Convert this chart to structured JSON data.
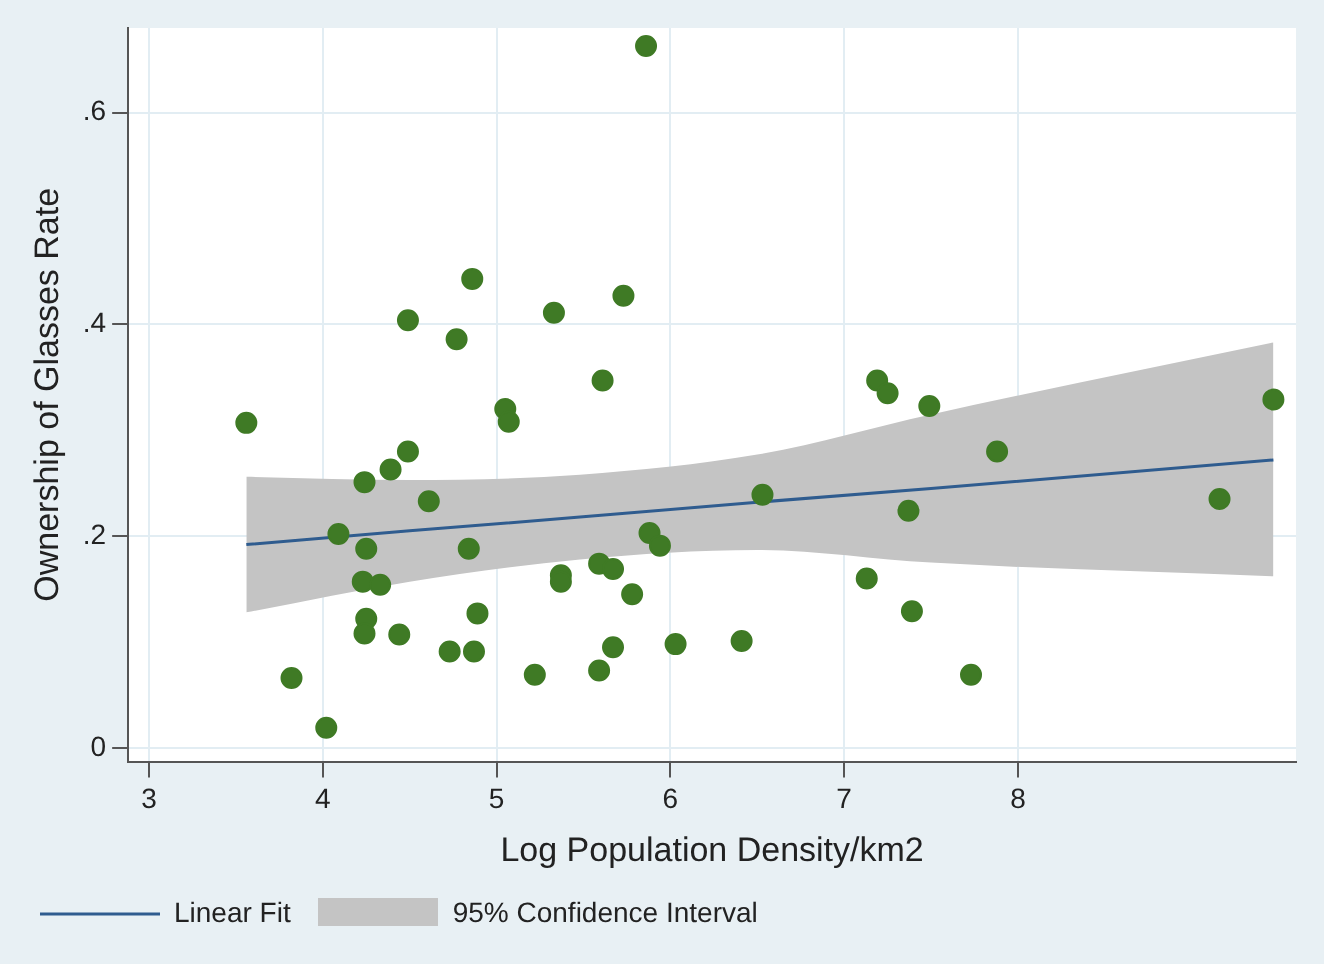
{
  "chart_data": {
    "type": "scatter",
    "xlabel": "Log Population Density/km2",
    "ylabel": "Ownership of Glasses Rate",
    "xlim": [
      2.88,
      9.6
    ],
    "ylim": [
      -0.013,
      0.68
    ],
    "xticks": [
      3,
      4,
      5,
      6,
      7,
      8
    ],
    "yticks": [
      {
        "value": 0,
        "label": "0"
      },
      {
        "value": 0.2,
        "label": ".2"
      },
      {
        "value": 0.4,
        "label": ".4"
      },
      {
        "value": 0.6,
        "label": ".6"
      }
    ],
    "grid": true,
    "legend": "bottom",
    "annotations": [
      "95% Confidence Interval"
    ],
    "series": [
      {
        "type": "line",
        "name": "Linear Fit",
        "color": "#2f5c8f",
        "x": [
          3.56,
          4.5,
          5.48,
          6.5,
          7.5,
          9.47
        ],
        "values": [
          0.192,
          0.205,
          0.218,
          0.232,
          0.245,
          0.272
        ],
        "lower": [
          0.128,
          0.157,
          0.178,
          0.187,
          0.175,
          0.162
        ],
        "upper": [
          0.256,
          0.253,
          0.258,
          0.277,
          0.315,
          0.383
        ]
      },
      {
        "marker": "circle",
        "color": "#3f7a25",
        "x": [
          3.56,
          3.82,
          4.02,
          4.09,
          4.24,
          4.25,
          4.23,
          4.33,
          4.25,
          4.24,
          4.44,
          4.39,
          4.49,
          4.49,
          4.61,
          4.77,
          4.86,
          4.84,
          4.89,
          4.73,
          4.87,
          5.05,
          5.07,
          5.22,
          5.33,
          5.37,
          5.37,
          5.86,
          5.73,
          5.61,
          5.59,
          5.67,
          5.78,
          5.88,
          5.94,
          5.67,
          5.59,
          6.03,
          6.41,
          6.53,
          7.13,
          7.19,
          7.25,
          7.49,
          7.37,
          7.39,
          7.73,
          7.88,
          9.16,
          9.47
        ],
        "values": [
          0.307,
          0.066,
          0.019,
          0.202,
          0.251,
          0.188,
          0.157,
          0.154,
          0.122,
          0.108,
          0.107,
          0.263,
          0.28,
          0.404,
          0.233,
          0.386,
          0.443,
          0.188,
          0.127,
          0.091,
          0.091,
          0.32,
          0.308,
          0.069,
          0.411,
          0.163,
          0.157,
          0.663,
          0.427,
          0.347,
          0.174,
          0.169,
          0.145,
          0.203,
          0.191,
          0.095,
          0.073,
          0.098,
          0.101,
          0.239,
          0.16,
          0.347,
          0.335,
          0.323,
          0.224,
          0.129,
          0.069,
          0.28,
          0.235,
          0.329
        ]
      }
    ]
  }
}
